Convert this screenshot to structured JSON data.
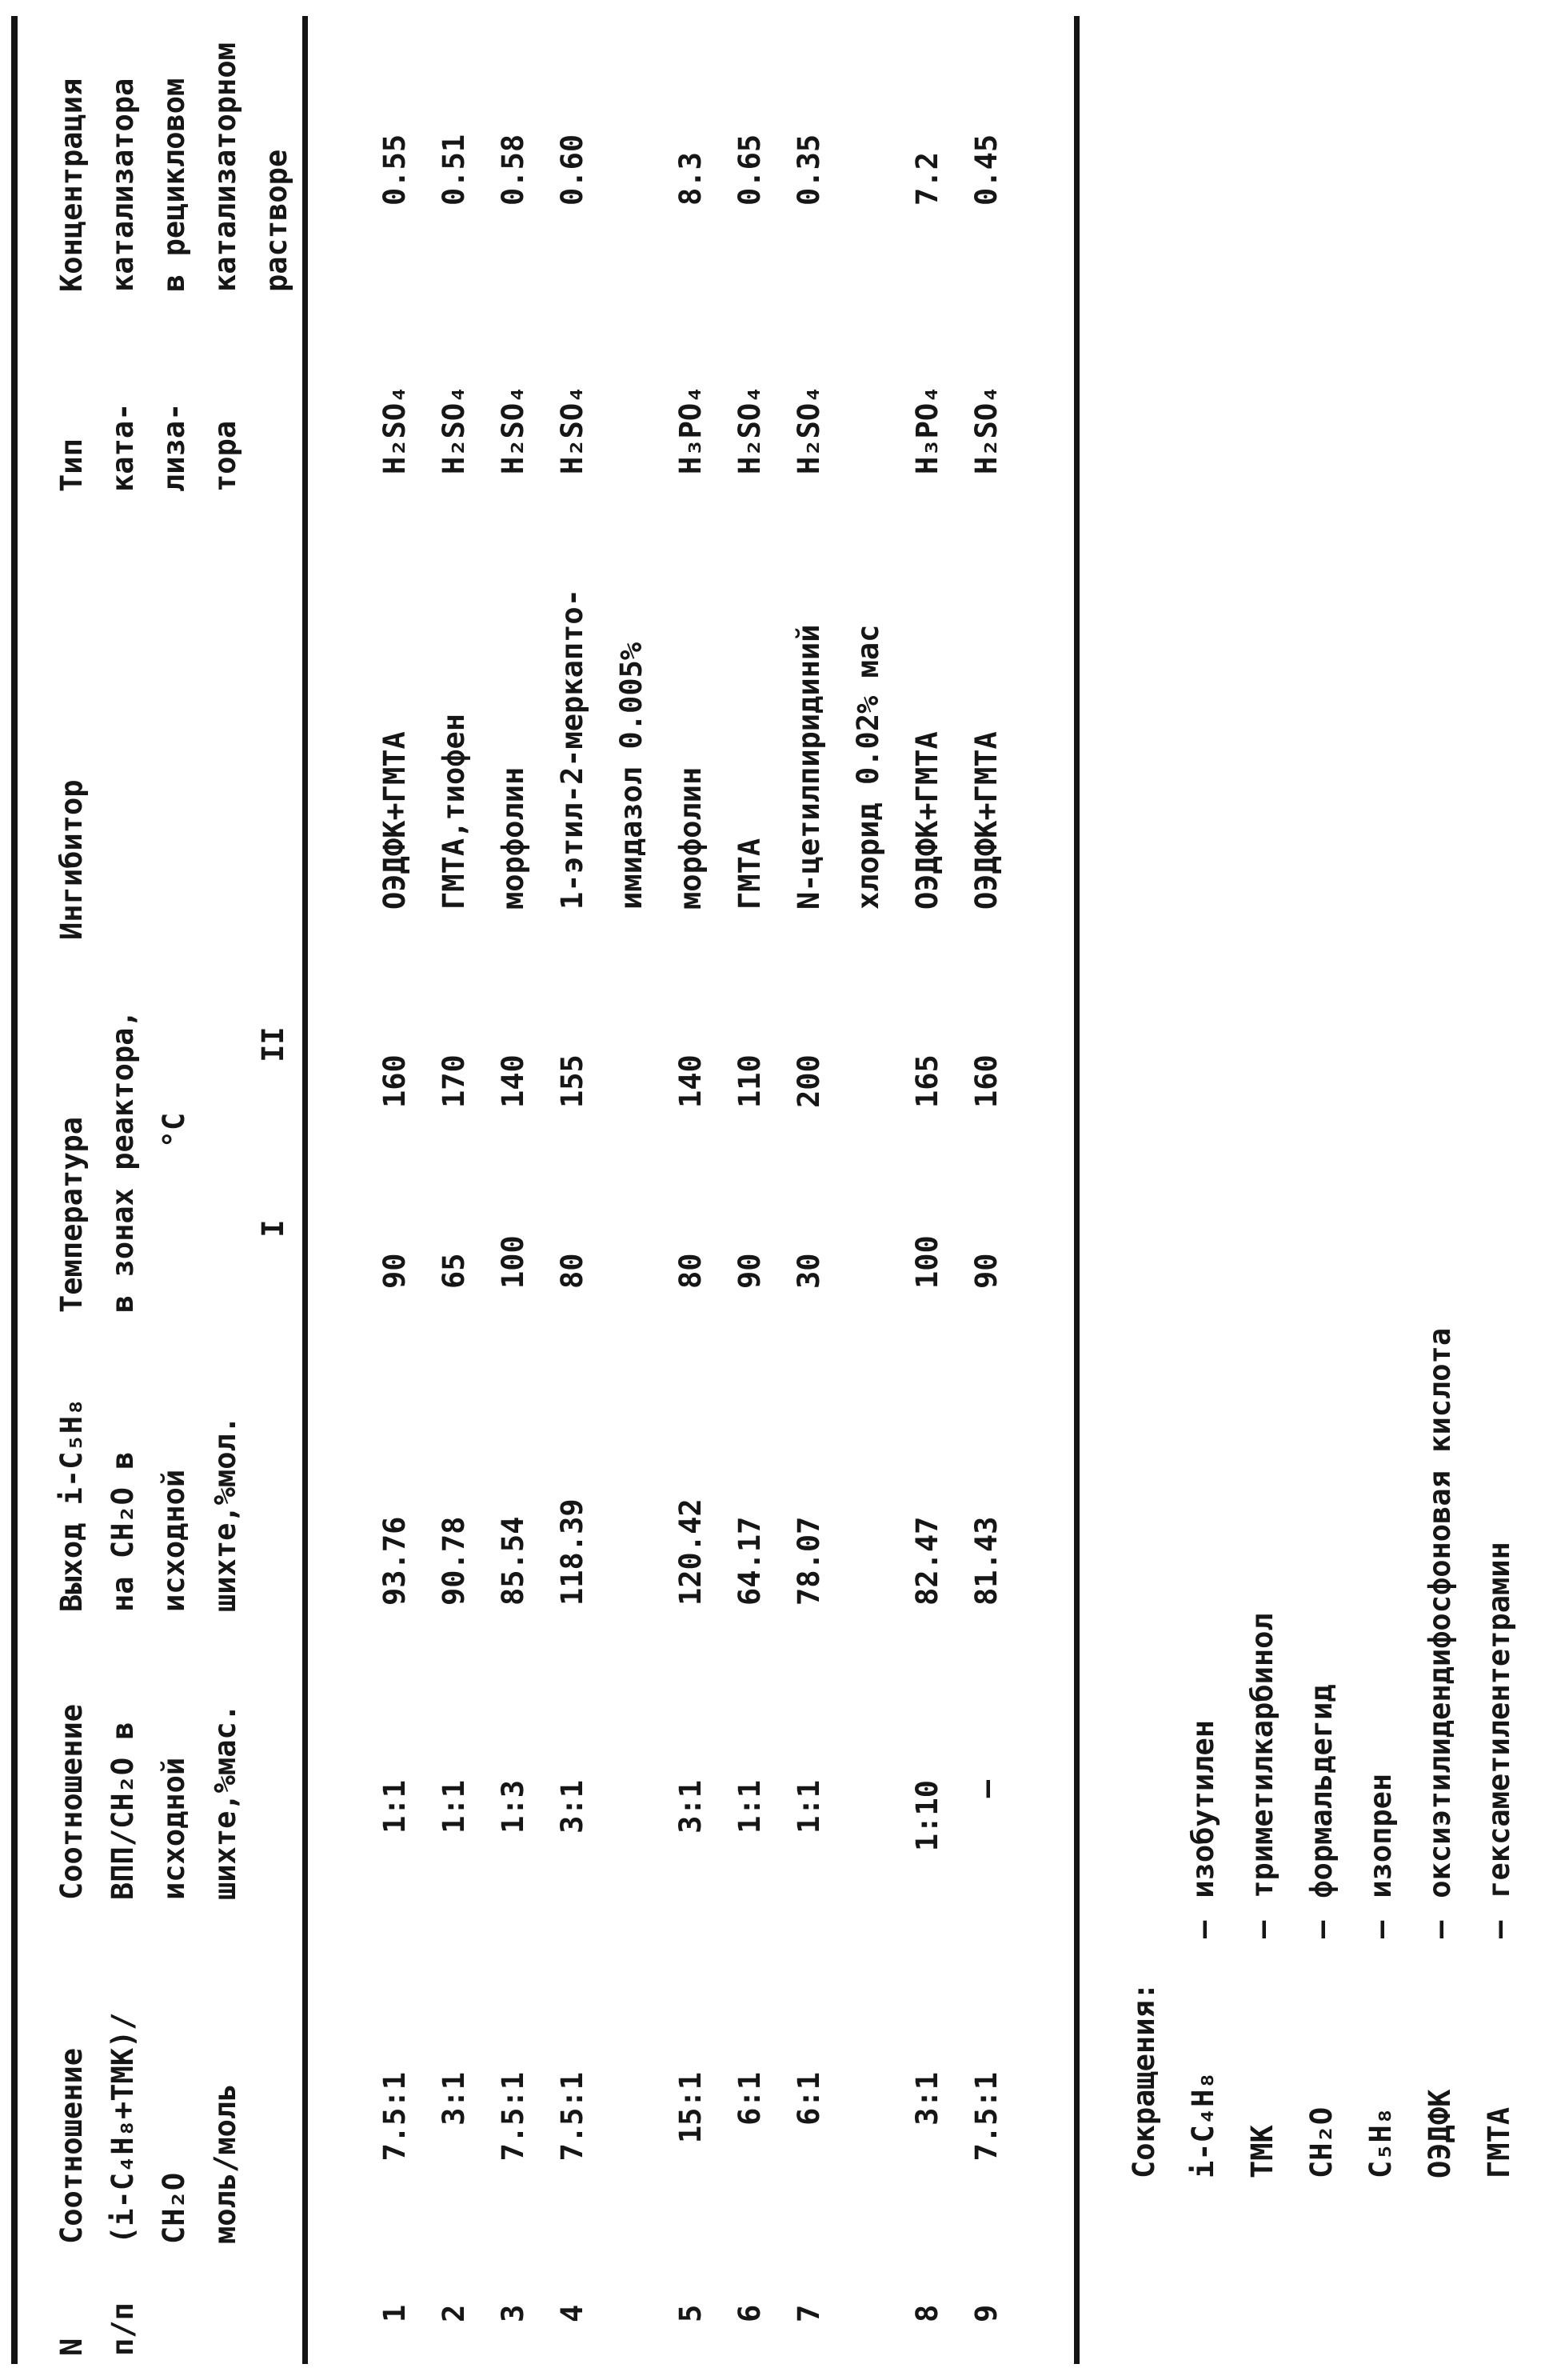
{
  "table": {
    "headers": {
      "col1": [
        "N",
        "п/п"
      ],
      "col2": [
        "Соотношение",
        "(i-C₄H₈+ТМК)/",
        "CH₂O",
        "моль/моль"
      ],
      "col3": [
        "Соотношение",
        "ВПП/CH₂O в",
        "исходной",
        "шихте,%мас."
      ],
      "col4": [
        "Выход i-C₅H₈",
        "на CH₂O в",
        "исходной",
        "шихте,%мол."
      ],
      "col5": [
        "Температура",
        "в зонах реактора,",
        "°C"
      ],
      "col5_sub": [
        "I",
        "II"
      ],
      "col6": [
        "Ингибитор"
      ],
      "col7": [
        "Тип",
        "ката-",
        "лиза-",
        "тора"
      ],
      "col8": [
        "Концентрация",
        "катализатора",
        "в рецикловом",
        "катализаторном",
        "растворе"
      ]
    },
    "rows": [
      {
        "n": "1",
        "ratio1": "7.5:1",
        "ratio2": "1:1",
        "yield": "93.76",
        "t1": "90",
        "t2": "160",
        "inhibitor": [
          "ОЭДФК+ГМТА"
        ],
        "catalyst": "H₂SO₄",
        "conc": "0.55"
      },
      {
        "n": "2",
        "ratio1": "3:1",
        "ratio2": "1:1",
        "yield": "90.78",
        "t1": "65",
        "t2": "170",
        "inhibitor": [
          "ГМТА,тиофен"
        ],
        "catalyst": "H₂SO₄",
        "conc": "0.51"
      },
      {
        "n": "3",
        "ratio1": "7.5:1",
        "ratio2": "1:3",
        "yield": "85.54",
        "t1": "100",
        "t2": "140",
        "inhibitor": [
          "морфолин"
        ],
        "catalyst": "H₂SO₄",
        "conc": "0.58"
      },
      {
        "n": "4",
        "ratio1": "7.5:1",
        "ratio2": "3:1",
        "yield": "118.39",
        "t1": "80",
        "t2": "155",
        "inhibitor": [
          "1-этил-2-меркапто-",
          "имидазол 0.005%"
        ],
        "catalyst": "H₂SO₄",
        "conc": "0.60"
      },
      {
        "n": "5",
        "ratio1": "15:1",
        "ratio2": "3:1",
        "yield": "120.42",
        "t1": "80",
        "t2": "140",
        "inhibitor": [
          "морфолин"
        ],
        "catalyst": "H₃PO₄",
        "conc": "8.3"
      },
      {
        "n": "6",
        "ratio1": "6:1",
        "ratio2": "1:1",
        "yield": "64.17",
        "t1": "90",
        "t2": "110",
        "inhibitor": [
          "ГМТА"
        ],
        "catalyst": "H₂SO₄",
        "conc": "0.65"
      },
      {
        "n": "7",
        "ratio1": "6:1",
        "ratio2": "1:1",
        "yield": "78.07",
        "t1": "30",
        "t2": "200",
        "inhibitor": [
          "N-цетилпиридиний",
          "хлорид 0.02% мас"
        ],
        "catalyst": "H₂SO₄",
        "conc": "0.35"
      },
      {
        "n": "8",
        "ratio1": "3:1",
        "ratio2": "1:10",
        "yield": "82.47",
        "t1": "100",
        "t2": "165",
        "inhibitor": [
          "ОЭДФК+ГМТА"
        ],
        "catalyst": "H₃PO₄",
        "conc": "7.2"
      },
      {
        "n": "9",
        "ratio1": "7.5:1",
        "ratio2": "–",
        "yield": "81.43",
        "t1": "90",
        "t2": "160",
        "inhibitor": [
          "ОЭДФК+ГМТА"
        ],
        "catalyst": "H₂SO₄",
        "conc": "0.45"
      }
    ]
  },
  "footnotes": {
    "title": "Сокращения:",
    "dash": "–",
    "items": [
      {
        "abbr": "i-C₄H₈",
        "def": "изобутилен"
      },
      {
        "abbr": "ТМК",
        "def": "триметилкарбинол"
      },
      {
        "abbr": "CH₂O",
        "def": "формальдегид"
      },
      {
        "abbr": "C₅H₈",
        "def": "изопрен"
      },
      {
        "abbr": "ОЭДФК",
        "def": "оксиэтилидендифосфоновая кислота"
      },
      {
        "abbr": "ГМТА",
        "def": "гексаметилентетрамин"
      }
    ]
  }
}
